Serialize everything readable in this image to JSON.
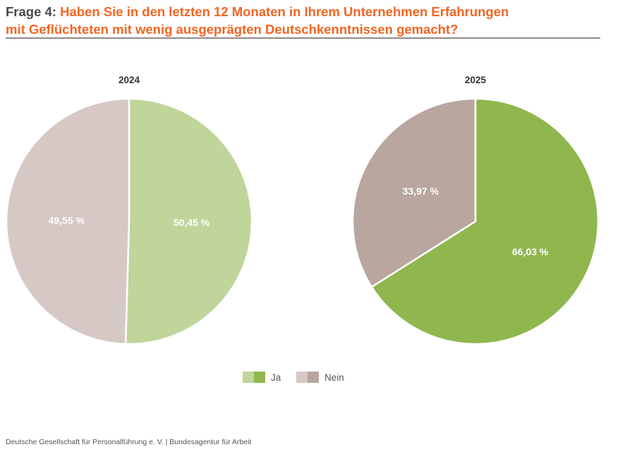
{
  "title": {
    "prefix": "Frage 4:",
    "line1": "Haben Sie in den letzten 12 Monaten in Ihrem Unternehmen Erfahrungen",
    "line2": "mit Geflüchteten mit wenig ausgeprägten Deutschkenntnissen gemacht?"
  },
  "chart_data": [
    {
      "type": "pie",
      "title": "2024",
      "categories": [
        "Ja",
        "Nein"
      ],
      "values": [
        50.45,
        49.55
      ],
      "labels": [
        "50,45 %",
        "49,55 %"
      ],
      "colors": [
        "#bfd59a",
        "#d6c8c5"
      ]
    },
    {
      "type": "pie",
      "title": "2025",
      "categories": [
        "Ja",
        "Nein"
      ],
      "values": [
        66.03,
        33.97
      ],
      "labels": [
        "66,03 %",
        "33,97 %"
      ],
      "colors": [
        "#8fb74e",
        "#b8a69f"
      ]
    }
  ],
  "legend": {
    "placement": "bottom-center",
    "items": [
      {
        "label": "Ja",
        "colors": [
          "#bfd59a",
          "#8fb74e"
        ]
      },
      {
        "label": "Nein",
        "colors": [
          "#d6c8c5",
          "#b8a69f"
        ]
      }
    ]
  },
  "footer": {
    "text": "Deutsche Gesellschaft für Personalführung e. V.  |  Bundesagentur für Arbeit"
  }
}
